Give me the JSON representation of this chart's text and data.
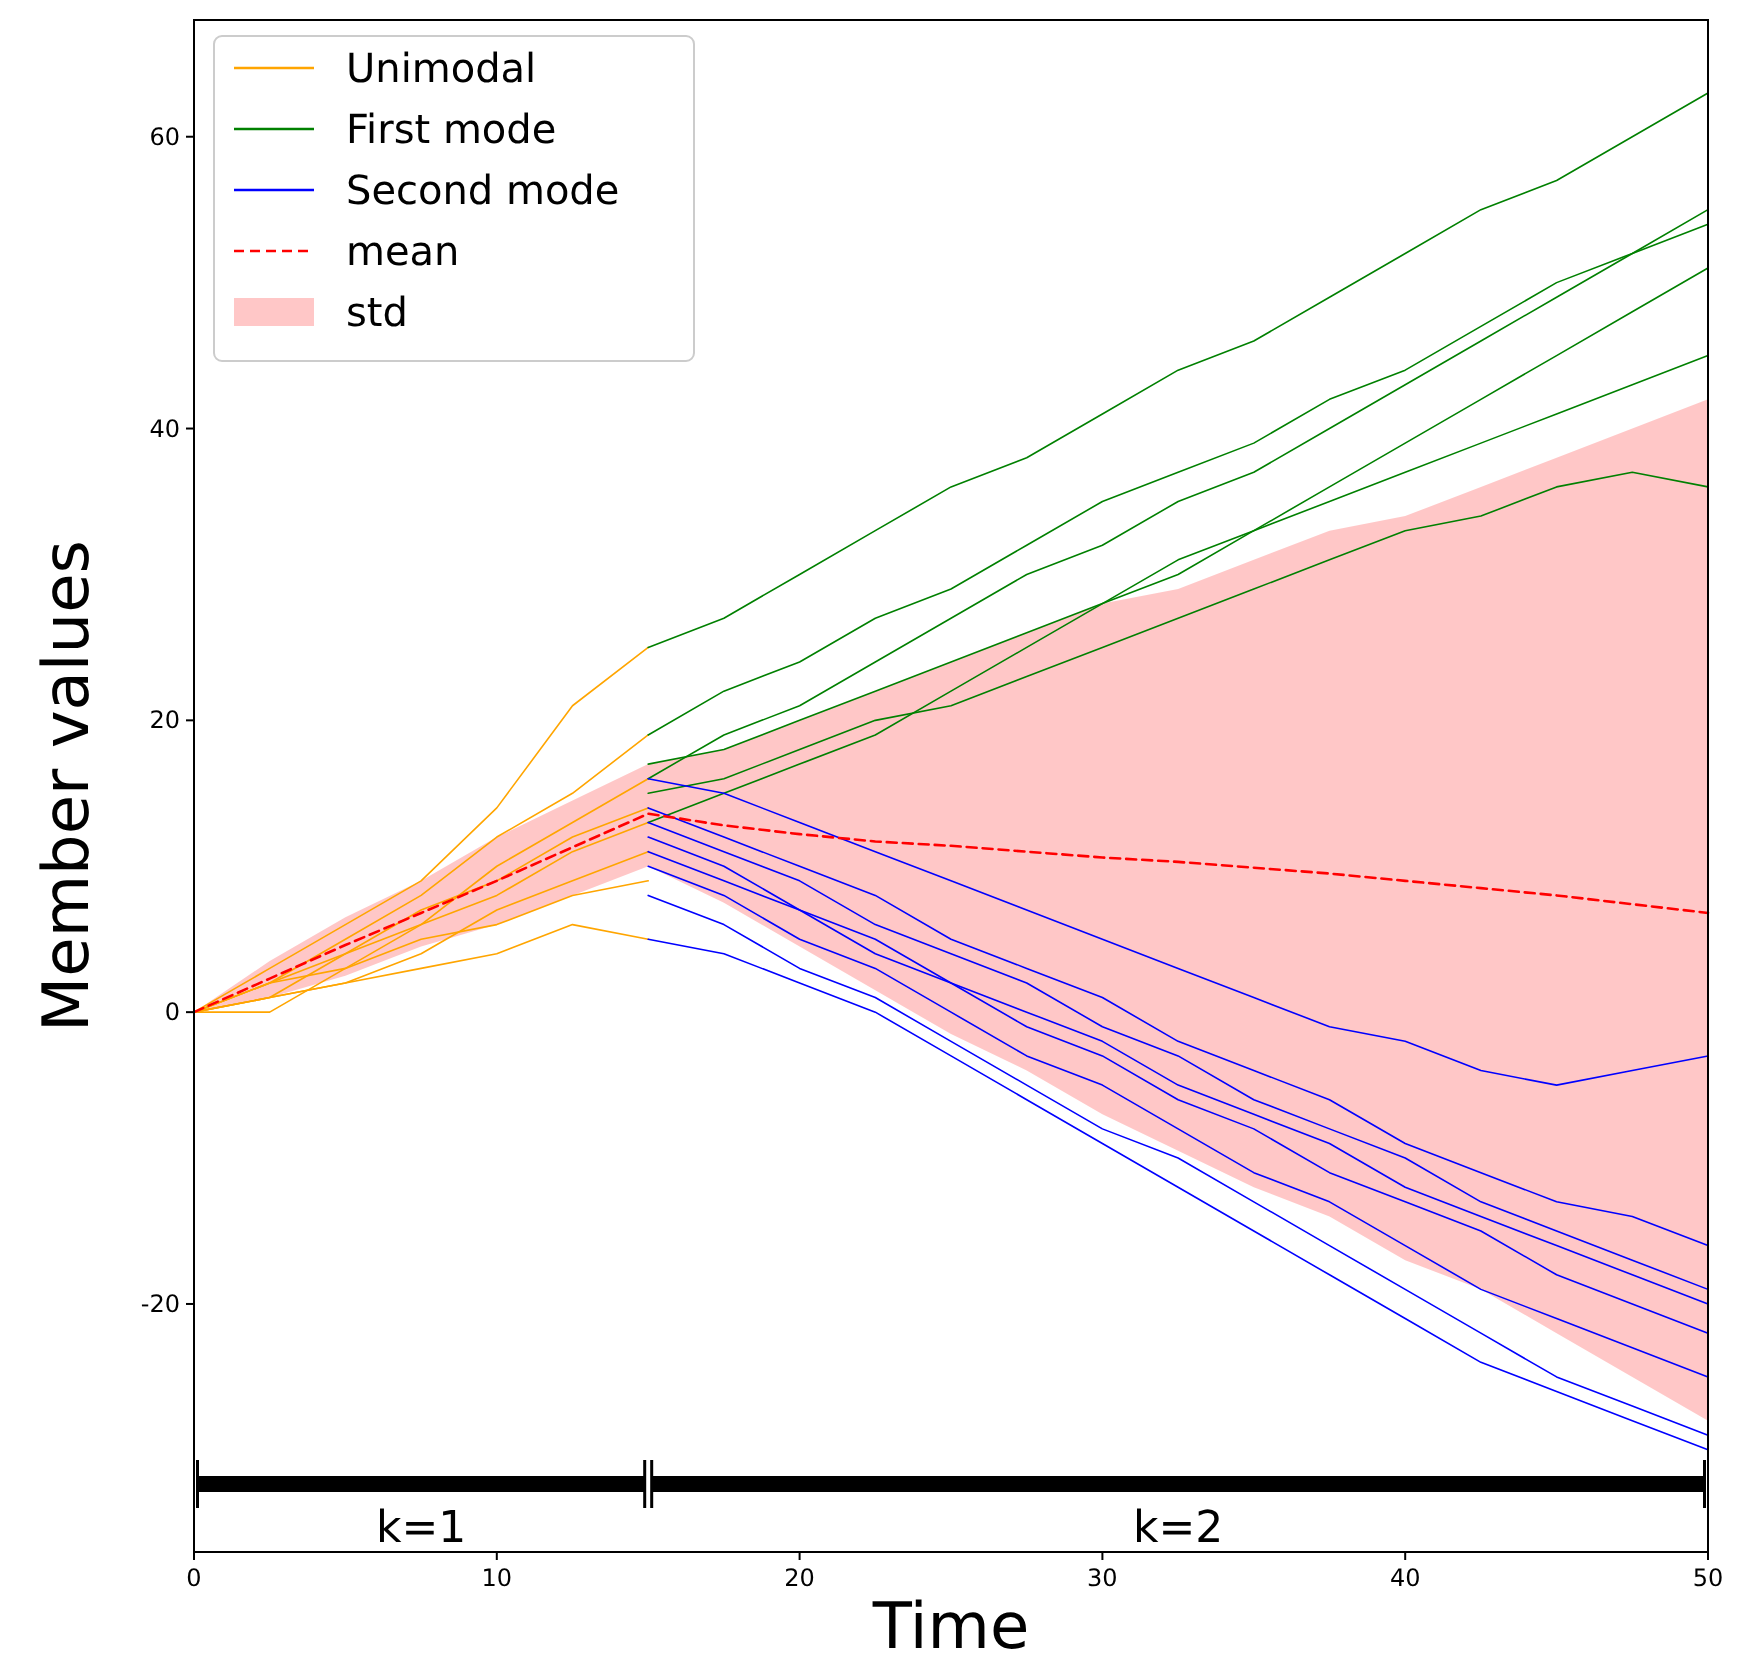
{
  "chart_data": {
    "type": "line",
    "xlabel": "Time",
    "ylabel": "Member values",
    "xlim": [
      0,
      50
    ],
    "ylim": [
      -37,
      68
    ],
    "xticks": [
      0,
      10,
      20,
      30,
      40,
      50
    ],
    "yticks": [
      -20,
      0,
      20,
      40,
      60
    ],
    "grid": false,
    "legend": "top left",
    "marker": "none",
    "line_style": "solid",
    "annotations": [
      "std",
      "k=1",
      "k=2"
    ],
    "series": [
      {
        "name": "Unimodal",
        "color": "#ffa500",
        "x": [
          0,
          2.5,
          5,
          7.5,
          10,
          12.5,
          15
        ],
        "values": [
          0,
          3,
          6,
          9,
          14,
          21,
          25
        ]
      },
      {
        "color": "#ffa500",
        "x": [
          0,
          2.5,
          5,
          7.5,
          10,
          12.5,
          15
        ],
        "values": [
          0,
          2,
          5,
          8,
          12,
          15,
          19
        ]
      },
      {
        "color": "#ffa500",
        "x": [
          0,
          2.5,
          5,
          7.5,
          10,
          12.5,
          15
        ],
        "values": [
          0,
          1,
          4,
          7,
          9,
          12,
          14
        ]
      },
      {
        "color": "#ffa500",
        "x": [
          0,
          2.5,
          5,
          7.5,
          10,
          12.5,
          15
        ],
        "values": [
          0,
          2,
          3,
          6,
          8,
          11,
          13
        ]
      },
      {
        "color": "#ffa500",
        "x": [
          0,
          2.5,
          5,
          7.5,
          10,
          12.5,
          15
        ],
        "values": [
          0,
          1,
          2,
          4,
          7,
          9,
          11
        ]
      },
      {
        "color": "#ffa500",
        "x": [
          0,
          2.5,
          5,
          7.5,
          10,
          12.5,
          15
        ],
        "values": [
          0,
          0,
          3,
          5,
          6,
          8,
          9
        ]
      },
      {
        "color": "#ffa500",
        "x": [
          0,
          2.5,
          5,
          7.5,
          10,
          12.5,
          15
        ],
        "values": [
          0,
          1,
          2,
          3,
          4,
          6,
          5
        ]
      },
      {
        "color": "#ffa500",
        "x": [
          0,
          2.5,
          5,
          7.5,
          10,
          12.5,
          15
        ],
        "values": [
          0,
          2,
          4,
          6,
          10,
          13,
          16
        ]
      },
      {
        "name": "First mode",
        "color": "#008000",
        "x": [
          15,
          17.5,
          20,
          22.5,
          25,
          27.5,
          30,
          32.5,
          35,
          37.5,
          40,
          42.5,
          45,
          47.5,
          50
        ],
        "values": [
          25,
          27,
          30,
          33,
          36,
          38,
          41,
          44,
          46,
          49,
          52,
          55,
          57,
          60,
          63
        ]
      },
      {
        "color": "#008000",
        "x": [
          15,
          17.5,
          20,
          22.5,
          25,
          27.5,
          30,
          32.5,
          35,
          37.5,
          40,
          42.5,
          45,
          47.5,
          50
        ],
        "values": [
          19,
          22,
          24,
          27,
          29,
          32,
          35,
          37,
          39,
          42,
          44,
          47,
          50,
          52,
          55
        ]
      },
      {
        "color": "#008000",
        "x": [
          15,
          17.5,
          20,
          22.5,
          25,
          27.5,
          30,
          32.5,
          35,
          37.5,
          40,
          42.5,
          45,
          47.5,
          50
        ],
        "values": [
          17,
          18,
          20,
          22,
          24,
          26,
          28,
          31,
          33,
          35,
          37,
          39,
          41,
          43,
          45
        ]
      },
      {
        "color": "#008000",
        "x": [
          15,
          17.5,
          20,
          22.5,
          25,
          27.5,
          30,
          32.5,
          35,
          37.5,
          40,
          42.5,
          45,
          47.5,
          50
        ],
        "values": [
          15,
          16,
          18,
          20,
          21,
          23,
          25,
          27,
          29,
          31,
          33,
          34,
          36,
          37,
          36
        ]
      },
      {
        "color": "#008000",
        "x": [
          15,
          17.5,
          20,
          22.5,
          25,
          27.5,
          30,
          32.5,
          35,
          37.5,
          40,
          42.5,
          45,
          47.5,
          50
        ],
        "values": [
          13,
          15,
          17,
          19,
          22,
          25,
          28,
          30,
          33,
          36,
          39,
          42,
          45,
          48,
          51
        ]
      },
      {
        "color": "#008000",
        "x": [
          15,
          17.5,
          20,
          22.5,
          25,
          27.5,
          30,
          32.5,
          35,
          37.5,
          40,
          42.5,
          45,
          47.5,
          50
        ],
        "values": [
          16,
          19,
          21,
          24,
          27,
          30,
          32,
          35,
          37,
          40,
          43,
          46,
          49,
          52,
          54
        ]
      },
      {
        "name": "Second mode",
        "color": "#0000ff",
        "x": [
          15,
          17.5,
          20,
          22.5,
          25,
          27.5,
          30,
          32.5,
          35,
          37.5,
          40,
          42.5,
          45,
          47.5,
          50
        ],
        "values": [
          16,
          15,
          13,
          11,
          9,
          7,
          5,
          3,
          1,
          -1,
          -2,
          -4,
          -5,
          -4,
          -3
        ]
      },
      {
        "color": "#0000ff",
        "x": [
          15,
          17.5,
          20,
          22.5,
          25,
          27.5,
          30,
          32.5,
          35,
          37.5,
          40,
          42.5,
          45,
          47.5,
          50
        ],
        "values": [
          14,
          12,
          10,
          8,
          5,
          3,
          1,
          -2,
          -4,
          -6,
          -9,
          -11,
          -13,
          -14,
          -16
        ]
      },
      {
        "color": "#0000ff",
        "x": [
          15,
          17.5,
          20,
          22.5,
          25,
          27.5,
          30,
          32.5,
          35,
          37.5,
          40,
          42.5,
          45,
          47.5,
          50
        ],
        "values": [
          12,
          10,
          7,
          5,
          2,
          0,
          -2,
          -5,
          -7,
          -9,
          -12,
          -14,
          -16,
          -18,
          -20
        ]
      },
      {
        "color": "#0000ff",
        "x": [
          15,
          17.5,
          20,
          22.5,
          25,
          27.5,
          30,
          32.5,
          35,
          37.5,
          40,
          42.5,
          45,
          47.5,
          50
        ],
        "values": [
          10,
          8,
          5,
          3,
          0,
          -3,
          -5,
          -8,
          -11,
          -13,
          -16,
          -19,
          -21,
          -23,
          -25
        ]
      },
      {
        "color": "#0000ff",
        "x": [
          15,
          17.5,
          20,
          22.5,
          25,
          27.5,
          30,
          32.5,
          35,
          37.5,
          40,
          42.5,
          45,
          47.5,
          50
        ],
        "values": [
          8,
          6,
          3,
          1,
          -2,
          -5,
          -8,
          -10,
          -13,
          -16,
          -19,
          -22,
          -25,
          -27,
          -29
        ]
      },
      {
        "color": "#0000ff",
        "x": [
          15,
          17.5,
          20,
          22.5,
          25,
          27.5,
          30,
          32.5,
          35,
          37.5,
          40,
          42.5,
          45,
          47.5,
          50
        ],
        "values": [
          13,
          11,
          9,
          6,
          4,
          2,
          -1,
          -3,
          -6,
          -8,
          -10,
          -13,
          -15,
          -17,
          -19
        ]
      },
      {
        "color": "#0000ff",
        "x": [
          15,
          17.5,
          20,
          22.5,
          25,
          27.5,
          30,
          32.5,
          35,
          37.5,
          40,
          42.5,
          45,
          47.5,
          50
        ],
        "values": [
          11,
          9,
          7,
          4,
          2,
          -1,
          -3,
          -6,
          -8,
          -11,
          -13,
          -15,
          -18,
          -20,
          -22
        ]
      },
      {
        "color": "#0000ff",
        "x": [
          15,
          17.5,
          20,
          22.5,
          25,
          27.5,
          30,
          32.5,
          35,
          37.5,
          40,
          42.5,
          45,
          47.5,
          50
        ],
        "values": [
          5,
          4,
          2,
          0,
          -3,
          -6,
          -9,
          -12,
          -15,
          -18,
          -21,
          -24,
          -26,
          -28,
          -30
        ]
      },
      {
        "name": "mean",
        "color": "#ff0000",
        "line_style": "dashed",
        "x": [
          0,
          2.5,
          5,
          7.5,
          10,
          12.5,
          15,
          17.5,
          20,
          22.5,
          25,
          27.5,
          30,
          32.5,
          35,
          37.5,
          40,
          42.5,
          45,
          47.5,
          50
        ],
        "values": [
          0,
          2.3,
          4.6,
          6.8,
          9,
          11.3,
          13.6,
          12.8,
          12.2,
          11.7,
          11.4,
          11,
          10.6,
          10.3,
          9.9,
          9.5,
          9,
          8.5,
          8,
          7.4,
          6.8
        ],
        "lower": [
          0,
          1,
          2.5,
          4.5,
          6,
          8,
          10,
          7.5,
          4.5,
          1.5,
          -1.5,
          -4,
          -7,
          -9.5,
          -12,
          -14,
          -17,
          -19,
          -22,
          -25,
          -28
        ],
        "upper": [
          0,
          3.5,
          6.5,
          9,
          12,
          14.5,
          17,
          18,
          20,
          22,
          24,
          26,
          28,
          29,
          31,
          33,
          34,
          36,
          38,
          40,
          42
        ]
      }
    ]
  }
}
